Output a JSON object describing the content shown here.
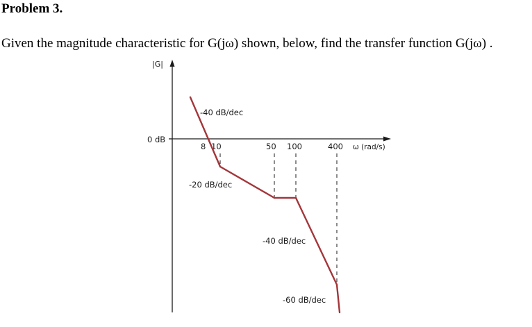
{
  "problem": {
    "heading": "Problem 3.",
    "statement": "Given the magnitude characteristic for G(jω) shown, below, find the transfer function G(jω) ."
  },
  "colors": {
    "curve": "#a3363a",
    "axis": "#1a1a1a",
    "text": "#1a1a1a"
  },
  "chart_data": {
    "type": "line",
    "title": "",
    "ylabel": "|G|",
    "xlabel": "ω (rad/s)",
    "y_reference_label": "0 dB",
    "x_scale": "log",
    "grid": false,
    "legend": "none",
    "corner_frequencies": [
      8,
      10,
      50,
      100,
      400
    ],
    "x_tick_labels": [
      "8",
      "10",
      "50",
      "100",
      "400"
    ],
    "slopes": [
      {
        "label": "-40 dB/dec",
        "slope": -40,
        "from": null,
        "to": 10
      },
      {
        "label": "-20 dB/dec",
        "slope": -20,
        "from": 10,
        "to": 50
      },
      {
        "label": "",
        "slope": 0,
        "from": 50,
        "to": 100
      },
      {
        "label": "-40 dB/dec",
        "slope": -40,
        "from": 100,
        "to": 400
      },
      {
        "label": "-60 dB/dec",
        "slope": -60,
        "from": 400,
        "to": null
      }
    ],
    "zero_db_crossing": 8
  }
}
